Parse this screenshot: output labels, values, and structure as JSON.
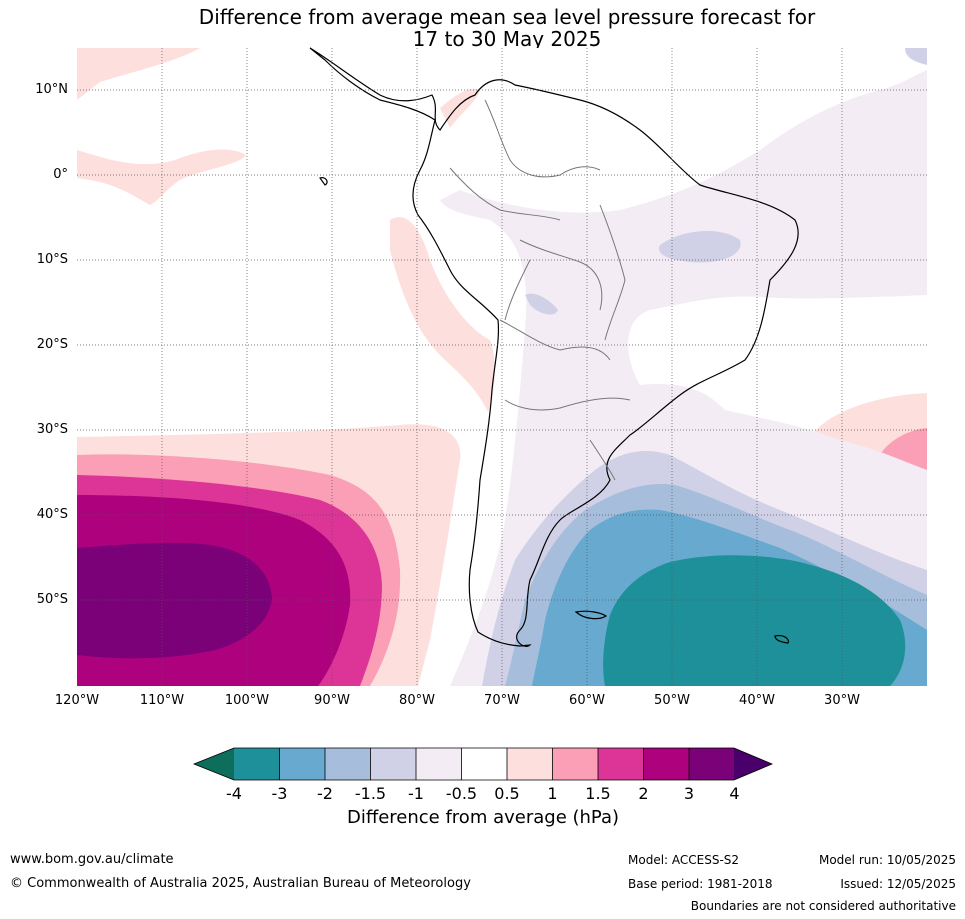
{
  "title": {
    "line1": "Difference from average mean sea level pressure forecast for",
    "line2": "17 to 30 May 2025"
  },
  "lat_labels": [
    "10°N",
    "0°",
    "10°S",
    "20°S",
    "30°S",
    "40°S",
    "50°S"
  ],
  "lon_labels": [
    "120°W",
    "110°W",
    "100°W",
    "90°W",
    "80°W",
    "70°W",
    "60°W",
    "50°W",
    "40°W",
    "30°W"
  ],
  "colorbar": {
    "ticks": [
      "-4",
      "-3",
      "-2",
      "-1.5",
      "-1",
      "-0.5",
      "0.5",
      "1",
      "1.5",
      "2",
      "3",
      "4"
    ],
    "colors": {
      "below_min": "#0d6e5c",
      "c1": "#1e9099",
      "c2": "#67a9cf",
      "c3": "#a6bddb",
      "c4": "#d0d1e6",
      "c5": "#f3ecf5",
      "c6": "#ffffff",
      "c7": "#fde0dd",
      "c8": "#fa9fb5",
      "c9": "#dd3497",
      "c10": "#ae017e",
      "c11": "#7a0177",
      "above_max": "#49006a"
    },
    "label": "Difference from average (hPa)"
  },
  "footer": {
    "website": "www.bom.gov.au/climate",
    "copyright": "© Commonwealth of Australia 2025, Australian Bureau of Meteorology",
    "model": "Model: ACCESS-S2",
    "base_period": "Base period: 1981-2018",
    "model_run": "Model run: 10/05/2025",
    "issued": "Issued: 12/05/2025",
    "disclaimer": "Boundaries are not considered authoritative"
  }
}
